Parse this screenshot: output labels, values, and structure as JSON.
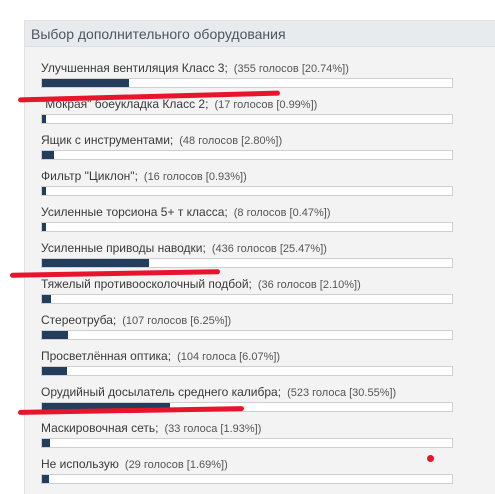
{
  "panel": {
    "title": "Выбор дополнительного оборудования"
  },
  "accent_color": "#233e5c",
  "annotation_color": "#e8142c",
  "options": [
    {
      "label": "Улучшенная вентиляция Класс 3;",
      "votes": "(355 голосов [20.74%])",
      "percent": 20.74
    },
    {
      "label": "\"Мокрая\" боеукладка Класс 2;",
      "votes": "(17 голосов [0.99%])",
      "percent": 0.99
    },
    {
      "label": "Ящик с инструментами;",
      "votes": "(48 голосов [2.80%])",
      "percent": 2.8
    },
    {
      "label": "Фильтр \"Циклон\";",
      "votes": "(16 голосов [0.93%])",
      "percent": 0.93
    },
    {
      "label": "Усиленные торсиона 5+ т класса;",
      "votes": "(8 голосов [0.47%])",
      "percent": 0.47
    },
    {
      "label": "Усиленные приводы наводки;",
      "votes": "(436 голосов [25.47%])",
      "percent": 25.47
    },
    {
      "label": "Тяжелый противоосколочный подбой;",
      "votes": "(36 голосов [2.10%])",
      "percent": 2.1
    },
    {
      "label": "Стереотруба;",
      "votes": "(107 голосов [6.25%])",
      "percent": 6.25
    },
    {
      "label": "Просветлённая оптика;",
      "votes": "(104 голоса [6.07%])",
      "percent": 6.07
    },
    {
      "label": "Орудийный досылатель среднего калибра;",
      "votes": "(523 голоса [30.55%])",
      "percent": 30.55
    },
    {
      "label": "Маскировочная сеть;",
      "votes": "(33 голоса [1.93%])",
      "percent": 1.93
    },
    {
      "label": "Не использую",
      "votes": "(29 голосов [1.69%])",
      "percent": 1.69
    }
  ]
}
